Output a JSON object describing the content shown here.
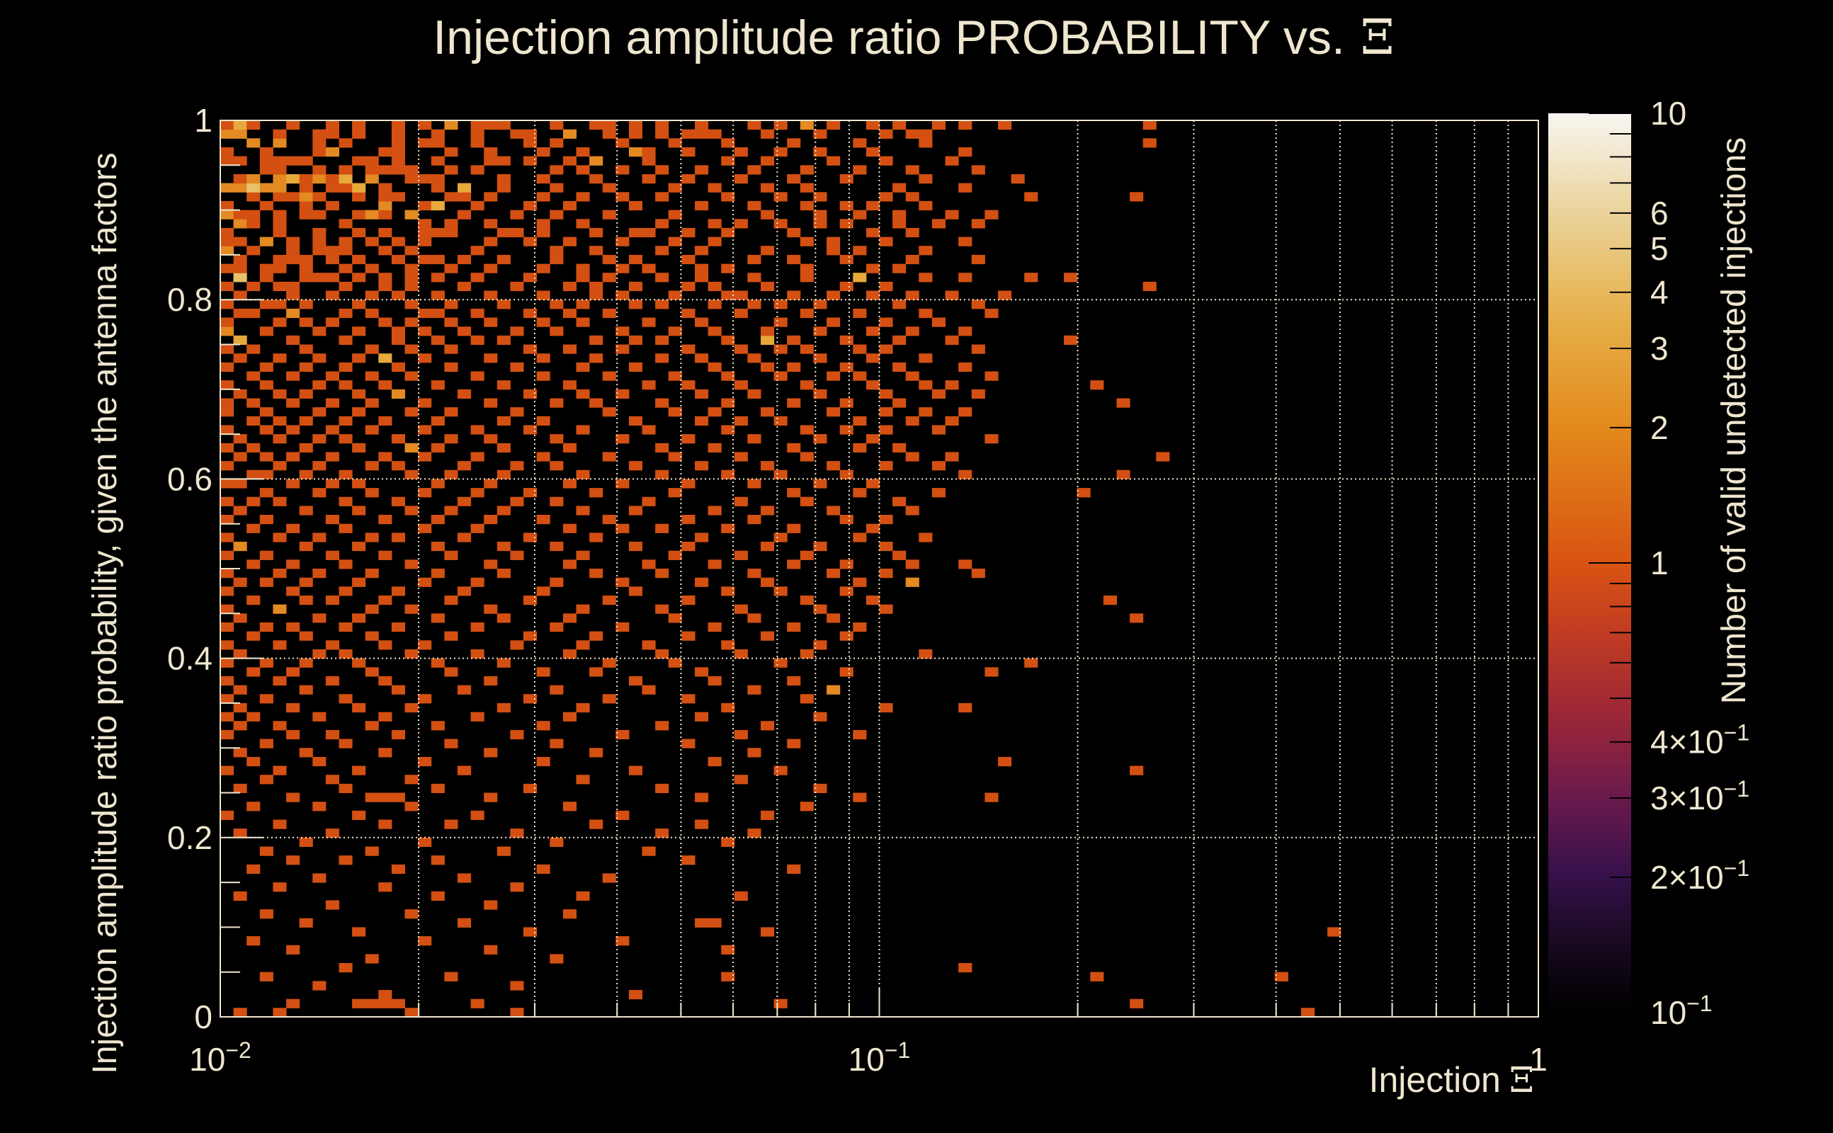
{
  "chart_data": {
    "type": "heatmap",
    "title": "Injection amplitude ratio PROBABILITY vs.",
    "title_symbol": "Ξ",
    "xlabel": "Injection",
    "xlabel_symbol": "Ξ",
    "ylabel": "Injection amplitude ratio probability, given the antenna factors",
    "zlabel": "Number of valid undetected injections",
    "x_scale": "log",
    "xlim": [
      0.01,
      1
    ],
    "ylim": [
      0,
      1
    ],
    "zlim": [
      0.1,
      10
    ],
    "z_scale": "log",
    "nx_bins": 100,
    "ny_bins": 100,
    "grid": true,
    "x_ticks": [
      {
        "value": 0.01,
        "base": "10",
        "exp": "−2"
      },
      {
        "value": 0.1,
        "base": "10",
        "exp": "−1"
      },
      {
        "value": 1,
        "base": "1",
        "exp": ""
      }
    ],
    "y_ticks": [
      {
        "value": 0,
        "label": "0"
      },
      {
        "value": 0.2,
        "label": "0.2"
      },
      {
        "value": 0.4,
        "label": "0.4"
      },
      {
        "value": 0.6,
        "label": "0.6"
      },
      {
        "value": 0.8,
        "label": "0.8"
      },
      {
        "value": 1,
        "label": "1"
      }
    ],
    "z_ticks": [
      {
        "value": 10,
        "base": "10",
        "exp": ""
      },
      {
        "value": 6,
        "base": "6",
        "exp": ""
      },
      {
        "value": 5,
        "base": "5",
        "exp": ""
      },
      {
        "value": 4,
        "base": "4",
        "exp": ""
      },
      {
        "value": 3,
        "base": "3",
        "exp": ""
      },
      {
        "value": 2,
        "base": "2",
        "exp": ""
      },
      {
        "value": 1,
        "base": "1",
        "exp": ""
      },
      {
        "value": 0.4,
        "base": "4×10",
        "exp": "−1"
      },
      {
        "value": 0.3,
        "base": "3×10",
        "exp": "−1"
      },
      {
        "value": 0.2,
        "base": "2×10",
        "exp": "−1"
      },
      {
        "value": 0.1,
        "base": "10",
        "exp": "−1"
      }
    ],
    "palette": [
      {
        "z": 0.1,
        "color": "#000000"
      },
      {
        "z": 0.15,
        "color": "#1c0a26"
      },
      {
        "z": 0.2,
        "color": "#35104a"
      },
      {
        "z": 0.3,
        "color": "#6a1a4c"
      },
      {
        "z": 0.45,
        "color": "#9a2638"
      },
      {
        "z": 0.7,
        "color": "#c23c22"
      },
      {
        "z": 1,
        "color": "#d95412"
      },
      {
        "z": 2,
        "color": "#e38a1c"
      },
      {
        "z": 3.5,
        "color": "#e6b04a"
      },
      {
        "z": 6,
        "color": "#ead39a"
      },
      {
        "z": 10,
        "color": "#f8f6f2"
      }
    ],
    "count_colors": {
      "1": "#d35012",
      "2": "#e38a22",
      "3": "#e7a93a",
      "4": "#e8c26a"
    },
    "rows": {
      "99": "0 1*3 2 5 8 10 13 15 17*2 19 20 21 25 28 29 31 33 36 40 42 44*2 46 49 51 54 56 59 70",
      "98": "0*2 1*2 4 7 8 10 13 16 19 22 23 26*2 29 31 33 35 36 37 41 45 50 52 53",
      "97": "2*2 4*2 7 9 13 15 16 19 23 25 30 34 38 43 48 53 70",
      "96": "0 3 7 8*2 12 13 17 20 24 27 31*2 32 35 39 42 45 49 56",
      "95": "0 1 3 4 5 6 10 11 13 16 20 21 23 26 28*2 32 38 41 46 50 55",
      "94": "3 4 7 9 11 12 13 14 17 19 25 27 30 33 36 40 44 48 52 57",
      "93": "1 2*2 4*2 5*3 6 7*2 8 9*3 11*2 14 15 16 21 24 28 32 35 39 43 47 53 60",
      "92": "0*2 1*2 2*4 3*2 4*2 6 8 9 10*3 12 16 18*3 21 25 29 34 37 41 44 51 56",
      "91": "2 4 5 6*2 7 10 12 13 17 18 20 24 27 30 33 38 42 45 50 52 61 69",
      "90": "0 3 6 8 12*2 15 16*3 19 23 26 31 36 40 44 47 49 53",
      "89": "0*2 1 2 4 6 7 10 11*2 12 14*2 18 22 25 29 34 41 45 48 51 55 58",
      "88": "1*2 2 4 9 15 17 20 24 27 33 37 39 42 45 47 51 54 57",
      "87": "0 4 7 10 12 15 16 17 21 22 24 28 31 32 35 38 43 49 52",
      "86": "0 1 3*2 5 7 9 11 13 15 20 23 26 30 34 37 44 46 50 56",
      "85": "0*2 2 5 7 8 9 12 14 19 25 28 33 36 41 46 48 53",
      "84": "1 4 5 6 8 10 13 15 16 18 21 25 29 31 35 40 43 47 52 57",
      "83": "0 1 3 4 6 9 11 14 17 20 24 27 30 32 36 38 44 49 51",
      "82": "1*4 3 6 7 8 10 12 14 16 19 23 27 29 33 36 40 44 48*3 53 56 61 64",
      "81": "0 2 4 5 9 12 14 18 22 26 28 31 35 37 41 47 50 70",
      "80": "1 5 8 11 13 16 20 24 28 30 34 38 39 43 46 49 52 55 59",
      "79": "0 3 4 6 10 14 17 21 25 27 31 33 37 40 42 45 51 57",
      "78": "1 2 5*2 9 11 15 16 19 23 26 29 35 39 44 48 53 58",
      "77": "0 4 6 8 12 14 17 20 24 27 32 36 42 46 50 54",
      "76": "0*2 3 7 10 13 15 18 22 25 30 34 37 41 45 49 52 56",
      "75": "1*3 5 9 13 16 19 21 28 31 33 38 41*3 43 47 51 55 64",
      "74": "0 2 6 11 14 17 23 26 30 35 39 42 44 48 50 57",
      "73": "1 4 7 10 12*3 15 20 24 28 33 36 40 45 49 53",
      "72": "0 3 6 9 13 17 22 27 31 37 41 43 47 51 56",
      "71": "2 5 8 11 14 19 24 29 34 38 42 46 48 52 58",
      "70": "0 3 7 9 12 16 21 26 32 35 39 44 49 53 55 66",
      "69": "1 4 6 10 13*2 18 23 27 30 36 40 45 50 54 57",
      "68": "0 2 5 8 11 15 20 25 28 33 38 43 47 51 68",
      "67": "0 3 7 10 14 17 22 29 34 37 41 46 50 53 56",
      "66": "2 4 6 9 12 16 21 24 31 36 39 42 48 52 55",
      "65": "0 3 5 8 11 15 19 23 27 32 38 44 47 50 54",
      "64": "1 4 7 9 13 17 20 25 30 35 40 45 49 58",
      "63": "0 2 6 10 14*2 16 21 26 33 37 43 48 51",
      "62": "1 3 5 8 12 15 19 24 29 34 39 44 52 55 71",
      "61": "0 4 7 11 13 18 22 25 31 36 41 46 50 54",
      "60": "2 3 6 9 14 17 21 27 33 38 42 47 56 68",
      "59": "0 1 5 8 10 16 20 26 30 35 40 45 49",
      "58": "3 7 11 15 19 23 28 34 43 48 54 65",
      "57": "0 2 4 9 13 18 22 25 32 39 44 51",
      "56": "1 6 10 14 17 21 27 31 37 41 46 52",
      "55": "0 3 8 12 16 20 24 29 35 40 47 50",
      "54": "2 5 9 15 19 26 30 33 38 43 49",
      "53": "0 4 7 11 13 18 23 28 36 42 48 53",
      "52": "1*2 6 10 16 21 25 31 35 41 45 50",
      "51": "0 3 8 12 17 22 27 34 39 44 51",
      "50": "2 5 9 14 20 26 32 37 43 47 52 56",
      "49": "0 4 7 11 16 21 28 33 40 46 50 57",
      "48": "1 3 6 10 15 19 25 30 36 41 48 52*2",
      "47": "0 5 9 13 18 24 31 38 42 47",
      "46": "2 6 8 12 17 23 29 35 44 49 67",
      "45": "0 4*2 11 14 20 27 33 39 45 50",
      "44": "1 7 10 16 21 26 34 40 46 69",
      "43": "0 3 5 9 13 19 25 30 37 43 48",
      "42": "2 6 11 17 23 28 35 41 47",
      "41": "0 4 8 12 15 22 27 32 38 45",
      "40": "1 7 9 14 19 26 33 39 44 53",
      "39": "0 3 6 10 16 21 29 34 42 61",
      "38": "2 5 11 17 24 28 36 47 58",
      "37": "0 4 8 12 20 31 37 43",
      "36": "1 6 13 18 25 32 40 46*2",
      "35": "0 3 9 15 23 29 35 44",
      "34": "1 5 10 14 21 27 38 50 56",
      "33": "0 2 7 12 19 26 36 45",
      "32": "1 4 11 16 24 33 41",
      "31": "0 5 8 13 22 30 39 48",
      "30": "3 9 17 25 35 43",
      "29": "1 6 12 20 28 40",
      "28": "2 7 15 24 37 59",
      "27": "0 4 10 18 31 42 69",
      "26": "3 8 14 27 39",
      "25": "1 9 16 23 33 45",
      "24": "5 11 12 13 20 36 48 58",
      "23": "2 7 14 26 44",
      "22": "0 10 19 30 41",
      "21": "4 12 17 28 36",
      "20": "1 8 22 33 40",
      "19": "6 15 25 38",
      "18": "3 11 21 32",
      "17": "5 9 16 35",
      "16": "2 13 24 43",
      "15": "7 18 29",
      "14": "4 12 22",
      "13": "1 16 27 39",
      "12": "8 20",
      "11": "3 14 26",
      "10": "6 18 36 37",
      "9": "10 23 41 84",
      "8": "2 15 30",
      "7": "5 20 38",
      "6": "11 25",
      "5": "9 56",
      "4": "3 17 38 66 80",
      "3": "7 22",
      "2": "12 31",
      "1": "5 10 11 12 13 19 42 69",
      "0": "1 4 14 22 82"
    }
  },
  "colors": {
    "text": "#efe6cf",
    "grid": "#efe6cf",
    "background": "#000000"
  }
}
